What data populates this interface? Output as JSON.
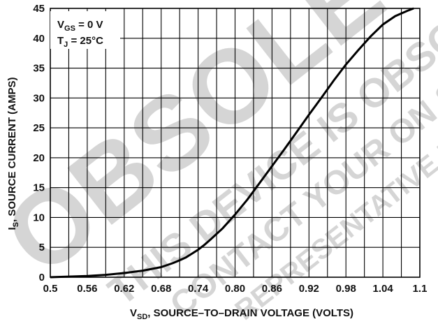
{
  "chart_data": {
    "type": "line",
    "xlabel_main": "V",
    "xlabel_sub": "SD",
    "xlabel_rest": ", SOURCE–TO–DRAIN VOLTAGE (VOLTS)",
    "ylabel_main": "I",
    "ylabel_sub": "S",
    "ylabel_rest": ", SOURCE CURRENT (AMPS)",
    "xlim": [
      0.5,
      1.1
    ],
    "ylim": [
      0,
      45
    ],
    "x_ticks": [
      "0.5",
      "0.56",
      "0.62",
      "0.68",
      "0.74",
      "0.80",
      "0.86",
      "0.92",
      "0.98",
      "1.04",
      "1.1"
    ],
    "y_ticks": [
      "0",
      "5",
      "10",
      "15",
      "20",
      "25",
      "30",
      "35",
      "40",
      "45"
    ],
    "grid": true,
    "conditions": [
      {
        "main": "V",
        "sub": "GS",
        "rest": " = 0 V"
      },
      {
        "main": "T",
        "sub": "J",
        "rest": " = 25°C"
      }
    ],
    "series": [
      {
        "x": [
          0.5,
          0.53,
          0.56,
          0.59,
          0.62,
          0.65,
          0.68,
          0.7,
          0.72,
          0.74,
          0.75,
          0.76,
          0.78,
          0.8,
          0.82,
          0.84,
          0.86,
          0.88,
          0.9,
          0.92,
          0.94,
          0.96,
          0.98,
          1.0,
          1.02,
          1.04,
          1.06,
          1.08,
          1.09
        ],
        "y": [
          0.0,
          0.1,
          0.2,
          0.4,
          0.7,
          1.1,
          1.7,
          2.4,
          3.3,
          4.6,
          5.4,
          6.3,
          8.2,
          10.5,
          13.0,
          15.8,
          18.6,
          21.4,
          24.3,
          27.2,
          30.0,
          32.9,
          35.6,
          38.0,
          40.3,
          42.3,
          43.7,
          44.6,
          45.0
        ]
      }
    ],
    "line_color": "#000000",
    "grid_color": "#000000"
  },
  "watermark": {
    "big_text": "OBSOLETE",
    "lines": [
      "THIS DEVICE IS OBSOLETE",
      "CONTACT YOUR ON SEMICONDUCTOR",
      "REPRESENTATIVE FOR INFORMATION"
    ]
  }
}
